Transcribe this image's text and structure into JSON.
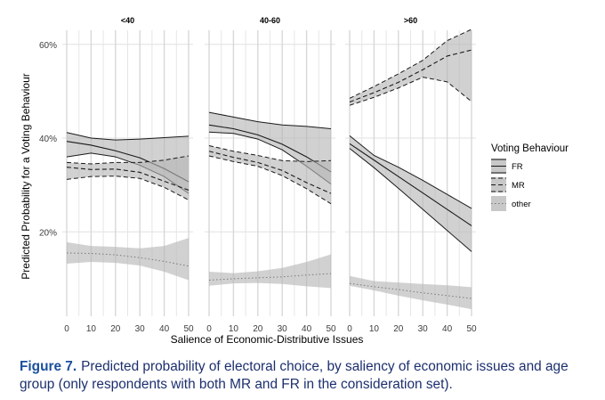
{
  "figure": {
    "number_label": "Figure 7.",
    "caption_text": "Predicted probability of electoral choice, by saliency of economic issues and age group (only respondents with both MR and FR in the consideration set)."
  },
  "colors": {
    "band": "#b5b5b5",
    "background": "#ffffff",
    "grid": "#e6e6e6",
    "caption": "#1c2f6e",
    "caption_label": "#1a4f9c"
  },
  "chart_data": {
    "type": "line",
    "xlabel": "Salience of Economic-Distributive Issues",
    "ylabel": "Predicted Probability for a Voting Behaviour",
    "xlim": [
      0,
      50
    ],
    "ylim": [
      0.02,
      0.63
    ],
    "x_ticks": [
      "0",
      "10",
      "20",
      "30",
      "40",
      "50"
    ],
    "y_ticks": [
      {
        "value": 0.2,
        "label": "20%"
      },
      {
        "value": 0.4,
        "label": "40%"
      },
      {
        "value": 0.6,
        "label": "60%"
      }
    ],
    "legend": {
      "title": "Voting Behaviour",
      "placement": "right",
      "entries": [
        {
          "key": "FR",
          "label": "FR",
          "line": "solid"
        },
        {
          "key": "MR",
          "label": "MR",
          "line": "dashed"
        },
        {
          "key": "other",
          "label": "other",
          "line": "dotted"
        }
      ]
    },
    "x": [
      0,
      10,
      20,
      30,
      40,
      50
    ],
    "panels": [
      {
        "label": "<40",
        "series": [
          {
            "name": "FR",
            "line": "solid",
            "estimate": [
              0.393,
              0.385,
              0.373,
              0.358,
              0.335,
              0.307
            ],
            "lower": [
              0.36,
              0.368,
              0.36,
              0.342,
              0.318,
              0.282
            ],
            "upper": [
              0.412,
              0.4,
              0.396,
              0.398,
              0.401,
              0.404
            ]
          },
          {
            "name": "MR",
            "line": "dashed",
            "estimate": [
              0.338,
              0.333,
              0.334,
              0.327,
              0.308,
              0.289
            ],
            "lower": [
              0.312,
              0.318,
              0.319,
              0.314,
              0.295,
              0.268
            ],
            "upper": [
              0.348,
              0.345,
              0.348,
              0.348,
              0.353,
              0.362
            ]
          },
          {
            "name": "other",
            "line": "dotted",
            "estimate": [
              0.155,
              0.154,
              0.151,
              0.145,
              0.137,
              0.127
            ],
            "lower": [
              0.132,
              0.136,
              0.134,
              0.128,
              0.115,
              0.097
            ],
            "upper": [
              0.178,
              0.17,
              0.168,
              0.165,
              0.17,
              0.187
            ]
          }
        ]
      },
      {
        "label": "40-60",
        "series": [
          {
            "name": "FR",
            "line": "solid",
            "estimate": [
              0.428,
              0.42,
              0.407,
              0.387,
              0.36,
              0.328
            ],
            "lower": [
              0.413,
              0.41,
              0.398,
              0.375,
              0.34,
              0.302
            ],
            "upper": [
              0.455,
              0.445,
              0.435,
              0.428,
              0.425,
              0.42
            ]
          },
          {
            "name": "MR",
            "line": "dashed",
            "estimate": [
              0.372,
              0.359,
              0.348,
              0.331,
              0.305,
              0.282
            ],
            "lower": [
              0.362,
              0.35,
              0.34,
              0.32,
              0.292,
              0.26
            ],
            "upper": [
              0.384,
              0.372,
              0.363,
              0.352,
              0.35,
              0.352
            ]
          },
          {
            "name": "other",
            "line": "dotted",
            "estimate": [
              0.097,
              0.1,
              0.102,
              0.104,
              0.108,
              0.111
            ],
            "lower": [
              0.085,
              0.09,
              0.091,
              0.089,
              0.084,
              0.08
            ],
            "upper": [
              0.115,
              0.112,
              0.116,
              0.123,
              0.136,
              0.152
            ]
          }
        ]
      },
      {
        "label": ">60",
        "series": [
          {
            "name": "FR",
            "line": "solid",
            "estimate": [
              0.388,
              0.353,
              0.318,
              0.283,
              0.248,
              0.213
            ],
            "lower": [
              0.378,
              0.337,
              0.293,
              0.248,
              0.203,
              0.158
            ],
            "upper": [
              0.405,
              0.363,
              0.338,
              0.31,
              0.28,
              0.25
            ]
          },
          {
            "name": "MR",
            "line": "dashed",
            "estimate": [
              0.477,
              0.497,
              0.519,
              0.546,
              0.575,
              0.588
            ],
            "lower": [
              0.47,
              0.487,
              0.507,
              0.53,
              0.52,
              0.478
            ],
            "upper": [
              0.485,
              0.51,
              0.537,
              0.566,
              0.608,
              0.632
            ]
          },
          {
            "name": "other",
            "line": "dotted",
            "estimate": [
              0.09,
              0.083,
              0.077,
              0.07,
              0.064,
              0.058
            ],
            "lower": [
              0.085,
              0.075,
              0.064,
              0.054,
              0.045,
              0.035
            ],
            "upper": [
              0.106,
              0.095,
              0.092,
              0.089,
              0.086,
              0.082
            ]
          }
        ]
      }
    ]
  }
}
